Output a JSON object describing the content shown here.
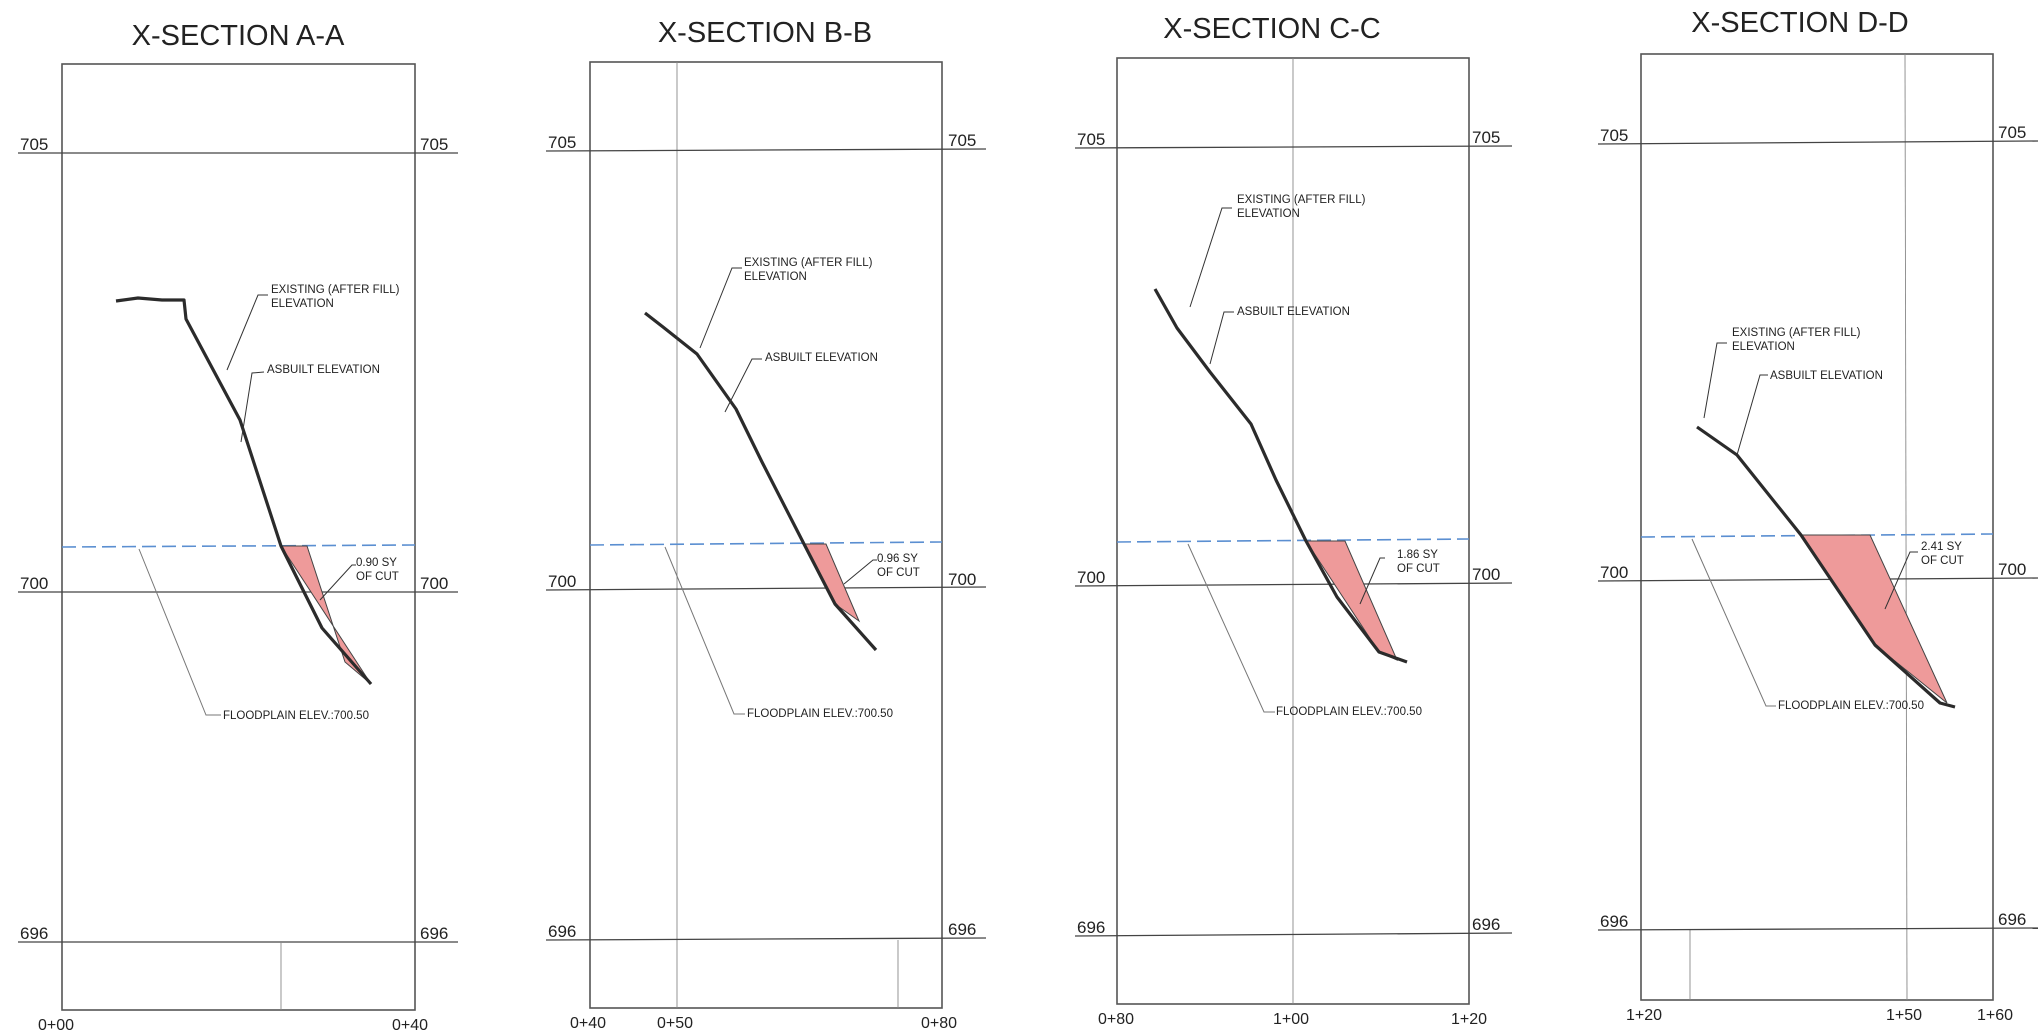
{
  "sections": [
    {
      "title": "X-SECTION A-A",
      "elev_labels": [
        "705",
        "700",
        "696"
      ],
      "stations": [
        "0+00",
        "0+40"
      ],
      "existing_label": [
        "EXISTING (AFTER FILL)",
        "ELEVATION"
      ],
      "asbuilt_label": "ASBUILT ELEVATION",
      "cut_label": [
        "0.90 SY",
        "OF CUT"
      ],
      "floodplain_label": "FLOODPLAIN ELEV.:700.50"
    },
    {
      "title": "X-SECTION B-B",
      "elev_labels": [
        "705",
        "700",
        "696"
      ],
      "stations": [
        "0+40",
        "0+50",
        "0+80"
      ],
      "existing_label": [
        "EXISTING (AFTER FILL)",
        "ELEVATION"
      ],
      "asbuilt_label": "ASBUILT ELEVATION",
      "cut_label": [
        "0.96 SY",
        "OF CUT"
      ],
      "floodplain_label": "FLOODPLAIN ELEV.:700.50"
    },
    {
      "title": "X-SECTION C-C",
      "elev_labels": [
        "705",
        "700",
        "696"
      ],
      "stations": [
        "0+80",
        "1+00",
        "1+20"
      ],
      "existing_label": [
        "EXISTING (AFTER FILL)",
        "ELEVATION"
      ],
      "asbuilt_label": "ASBUILT ELEVATION",
      "cut_label": [
        "1.86 SY",
        "OF CUT"
      ],
      "floodplain_label": "FLOODPLAIN ELEV.:700.50"
    },
    {
      "title": "X-SECTION D-D",
      "elev_labels": [
        "705",
        "700",
        "696"
      ],
      "stations": [
        "1+20",
        "1+50",
        "1+60"
      ],
      "existing_label": [
        "EXISTING (AFTER FILL)",
        "ELEVATION"
      ],
      "asbuilt_label": "ASBUILT ELEVATION",
      "cut_label": [
        "2.41 SY",
        "OF CUT"
      ],
      "floodplain_label": "FLOODPLAIN ELEV.:700.50"
    }
  ],
  "colors": {
    "floodplain_line": "#5b8fd1",
    "cut_fill": "#ee9a9a",
    "ground_line": "#2b2b2b"
  }
}
